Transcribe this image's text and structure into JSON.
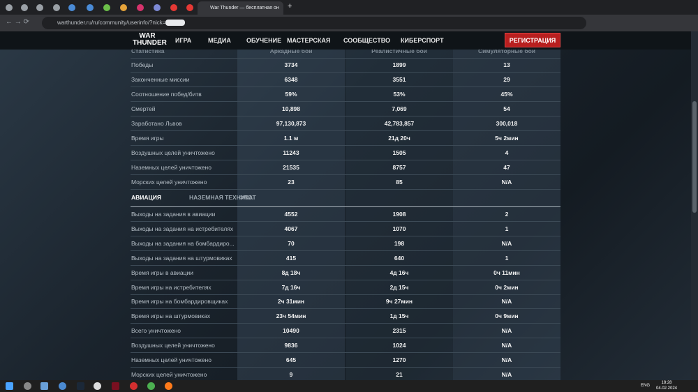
{
  "browser": {
    "tab_title": "War Thunder — бесплатная он",
    "url": "warthunder.ru/ru/community/userinfo/?nick="
  },
  "nav": {
    "logo": "WAR THUNDER",
    "items": [
      "ИГРА",
      "МЕДИА",
      "ОБУЧЕНИЕ",
      "МАСТЕРСКАЯ",
      "СООБЩЕСТВО",
      "КИБЕРСПОРТ"
    ],
    "register": "РЕГИСТРАЦИЯ"
  },
  "table": {
    "header": [
      "Статистика",
      "Аркадные бои",
      "Реалистичные бои",
      "Симуляторные бои"
    ],
    "rows": [
      [
        "Победы",
        "3734",
        "1899",
        "13"
      ],
      [
        "Законченные миссии",
        "6348",
        "3551",
        "29"
      ],
      [
        "Соотношение побед/битв",
        "59%",
        "53%",
        "45%"
      ],
      [
        "Смертей",
        "10,898",
        "7,069",
        "54"
      ],
      [
        "Заработано Львов",
        "97,130,873",
        "42,783,857",
        "300,018"
      ],
      [
        "Время игры",
        "1.1 м",
        "21д 20ч",
        "5ч 2мин"
      ],
      [
        "Воздушных целей уничтожено",
        "11243",
        "1505",
        "4"
      ],
      [
        "Наземных целей уничтожено",
        "21535",
        "8757",
        "47"
      ],
      [
        "Морских целей уничтожено",
        "23",
        "85",
        "N/A"
      ]
    ]
  },
  "tabs": [
    "АВИАЦИЯ",
    "НАЗЕМНАЯ ТЕХНИКА",
    "ФЛОТ"
  ],
  "aviation": {
    "rows": [
      [
        "Выходы на задания в авиации",
        "4552",
        "1908",
        "2"
      ],
      [
        "Выходы на задания на истребителях",
        "4067",
        "1070",
        "1"
      ],
      [
        "Выходы на задания на бомбардиро...",
        "70",
        "198",
        "N/A"
      ],
      [
        "Выходы на задания на штурмовиках",
        "415",
        "640",
        "1"
      ],
      [
        "Время игры в авиации",
        "8д 18ч",
        "4д 16ч",
        "0ч 11мин"
      ],
      [
        "Время игры на истребителях",
        "7д 16ч",
        "2д 15ч",
        "0ч 2мин"
      ],
      [
        "Время игры на бомбардировщиках",
        "2ч 31мин",
        "9ч 27мин",
        "N/A"
      ],
      [
        "Время игры на штурмовиках",
        "23ч 54мин",
        "1д 15ч",
        "0ч 9мин"
      ],
      [
        "Всего уничтожено",
        "10490",
        "2315",
        "N/A"
      ],
      [
        "Воздушных целей уничтожено",
        "9836",
        "1024",
        "N/A"
      ],
      [
        "Наземных целей уничтожено",
        "645",
        "1270",
        "N/A"
      ],
      [
        "Морских целей уничтожено",
        "9",
        "21",
        "N/A"
      ]
    ]
  },
  "taskbar": {
    "lang": "ENG",
    "time": "18:28",
    "date": "04.02.2024"
  }
}
